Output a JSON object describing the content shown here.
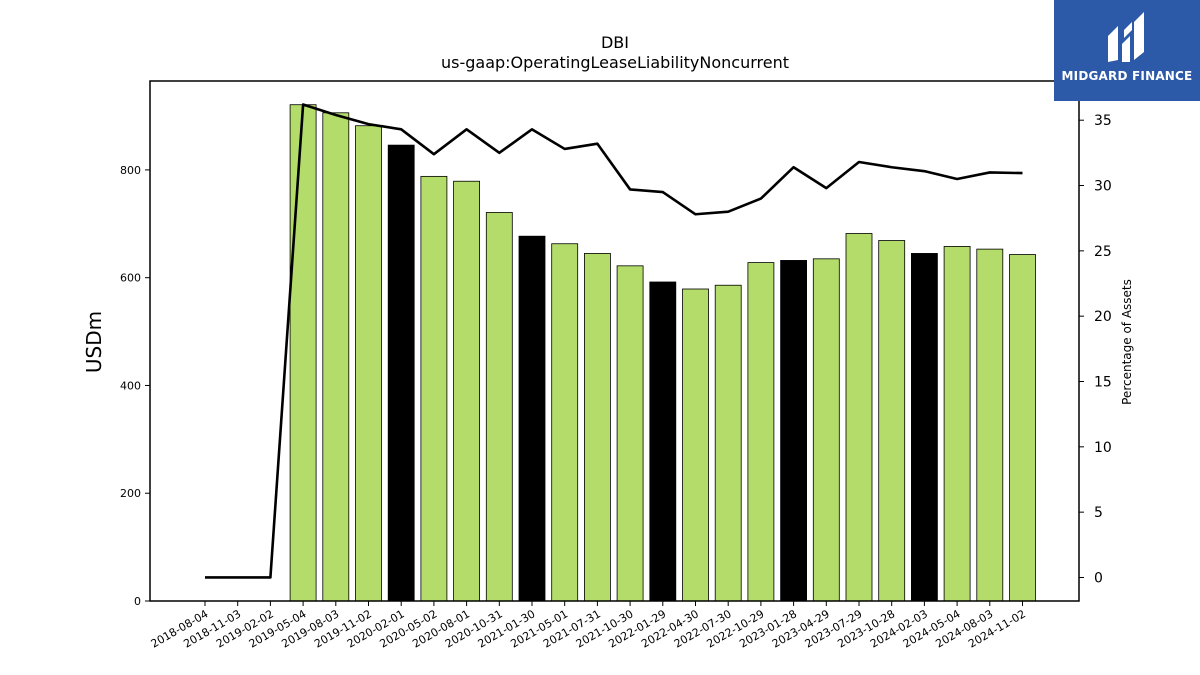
{
  "brand": {
    "name": "MIDGARD FINANCE",
    "bg_color": "#2d5aa8"
  },
  "chart_data": {
    "type": "bar",
    "title": "DBI",
    "subtitle": "us-gaap:OperatingLeaseLiabilityNoncurrent",
    "ylabel": "USDm",
    "y2label": "Percentage of Assets",
    "ylim": [
      0,
      965
    ],
    "y2lim": [
      -1.8,
      38.0
    ],
    "yticks": [
      0,
      200,
      400,
      600,
      800
    ],
    "y2ticks": [
      0,
      5,
      10,
      15,
      20,
      25,
      30,
      35
    ],
    "categories": [
      "2018-08-04",
      "2018-11-03",
      "2019-02-02",
      "2019-05-04",
      "2019-08-03",
      "2019-11-02",
      "2020-02-01",
      "2020-05-02",
      "2020-08-01",
      "2020-10-31",
      "2021-01-30",
      "2021-05-01",
      "2021-07-31",
      "2021-10-30",
      "2022-01-29",
      "2022-04-30",
      "2022-07-30",
      "2022-10-29",
      "2023-01-28",
      "2023-04-29",
      "2023-07-29",
      "2023-10-28",
      "2024-02-03",
      "2024-05-04",
      "2024-08-03",
      "2024-11-02"
    ],
    "series": [
      {
        "kind": "bar",
        "values": [
          null,
          null,
          null,
          921,
          906,
          882,
          846,
          788,
          779,
          721,
          677,
          663,
          645,
          622,
          592,
          579,
          586,
          628,
          632,
          635,
          682,
          669,
          645,
          658,
          653,
          643
        ],
        "colors": [
          "#b3dc6a",
          "#b3dc6a",
          "#b3dc6a",
          "#b3dc6a",
          "#b3dc6a",
          "#b3dc6a",
          "#000000",
          "#b3dc6a",
          "#b3dc6a",
          "#b3dc6a",
          "#000000",
          "#b3dc6a",
          "#b3dc6a",
          "#b3dc6a",
          "#000000",
          "#b3dc6a",
          "#b3dc6a",
          "#b3dc6a",
          "#000000",
          "#b3dc6a",
          "#b3dc6a",
          "#b3dc6a",
          "#000000",
          "#b3dc6a",
          "#b3dc6a",
          "#b3dc6a"
        ]
      },
      {
        "kind": "line",
        "axis": "right",
        "color": "#000000",
        "values": [
          0,
          0,
          0,
          36.2,
          35.4,
          34.7,
          34.3,
          32.4,
          34.3,
          32.5,
          34.3,
          32.8,
          33.2,
          29.7,
          29.5,
          27.8,
          28.0,
          29.0,
          31.4,
          29.8,
          31.8,
          31.4,
          31.1,
          30.5,
          31.0,
          30.95
        ]
      }
    ],
    "grid": false,
    "legend": "none"
  }
}
